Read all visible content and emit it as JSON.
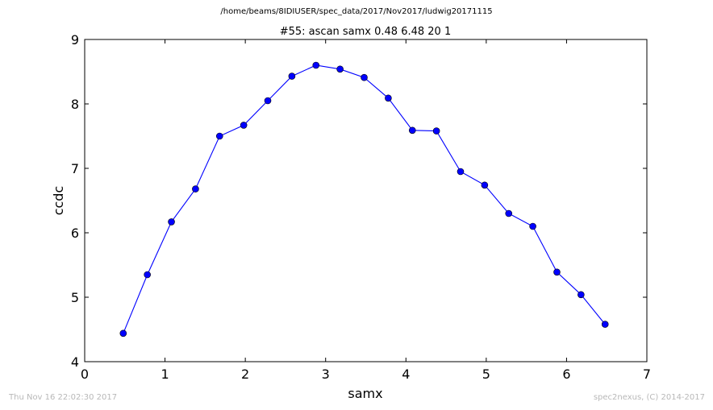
{
  "figure": {
    "suptitle": "/home/beams/8IDIUSER/spec_data/2017/Nov2017/ludwig20171115",
    "footer_left": "Thu Nov 16 22:02:30 2017",
    "footer_right": "spec2nexus, (C) 2014-2017"
  },
  "chart_data": {
    "type": "line",
    "title": "#55: ascan  samx 0.48 6.48  20 1",
    "xlabel": "samx",
    "ylabel": "ccdc",
    "xlim": [
      0,
      7
    ],
    "ylim": [
      4,
      9
    ],
    "xticks": [
      "0",
      "1",
      "2",
      "3",
      "4",
      "5",
      "6",
      "7"
    ],
    "yticks": [
      "4",
      "5",
      "6",
      "7",
      "8",
      "9"
    ],
    "grid": false,
    "marker": "circle",
    "color": "#0000ff",
    "series": [
      {
        "x": [
          0.48,
          0.78,
          1.08,
          1.38,
          1.68,
          1.98,
          2.28,
          2.58,
          2.88,
          3.18,
          3.48,
          3.78,
          4.08,
          4.38,
          4.68,
          4.98,
          5.28,
          5.58,
          5.88,
          6.18,
          6.48
        ],
        "y": [
          4.44,
          5.35,
          6.17,
          6.68,
          7.5,
          7.67,
          8.05,
          8.43,
          8.6,
          8.54,
          8.41,
          8.09,
          7.59,
          7.58,
          6.95,
          6.74,
          6.3,
          6.1,
          5.39,
          5.04,
          4.58
        ]
      }
    ]
  }
}
